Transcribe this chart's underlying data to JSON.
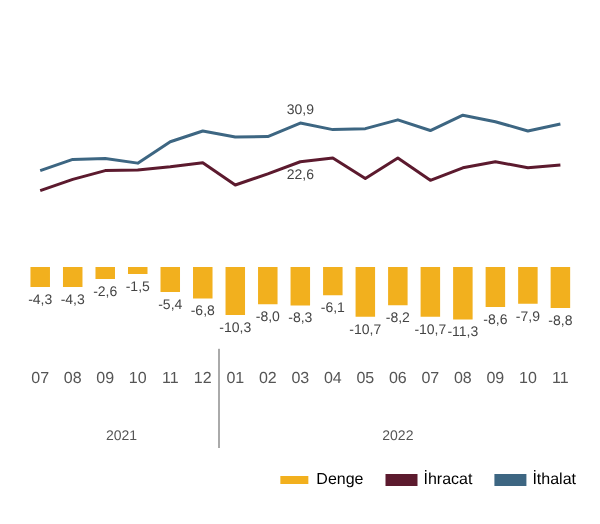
{
  "chart_data": {
    "type": "bar",
    "categories": [
      "07",
      "08",
      "09",
      "10",
      "11",
      "12",
      "01",
      "02",
      "03",
      "04",
      "05",
      "06",
      "07",
      "08",
      "09",
      "10",
      "11"
    ],
    "series": [
      {
        "name": "Denge",
        "color": "#f2b01e",
        "values": [
          -4.3,
          -4.3,
          -2.6,
          -1.5,
          -5.4,
          -6.8,
          -10.3,
          -8.0,
          -8.3,
          -6.1,
          -10.7,
          -8.2,
          -10.7,
          -11.3,
          -8.6,
          -7.9,
          -8.8
        ],
        "value_labels": [
          "-4,3",
          "-4,3",
          "-2,6",
          "-1,5",
          "-5,4",
          "-6,8",
          "-10,3",
          "-8,0",
          "-8,3",
          "-6,1",
          "-10,7",
          "-8,2",
          "-10,7",
          "-11,3",
          "-8,6",
          "-7,9",
          "-8,8"
        ]
      },
      {
        "name": "İhracat",
        "type": "line",
        "color": "#5c1a2e",
        "values": [
          16.4,
          18.8,
          20.7,
          20.8,
          21.5,
          22.4,
          17.6,
          20.0,
          22.6,
          23.4,
          19.0,
          23.4,
          18.6,
          21.3,
          22.6,
          21.3,
          21.9
        ],
        "value_labels": [
          null,
          null,
          null,
          null,
          null,
          null,
          null,
          null,
          "22,6",
          null,
          null,
          null,
          null,
          null,
          null,
          null,
          null
        ]
      },
      {
        "name": "İthalat",
        "type": "line",
        "color": "#3d6682",
        "values": [
          20.7,
          23.1,
          23.3,
          22.3,
          26.9,
          29.2,
          27.9,
          28.0,
          30.9,
          29.5,
          29.7,
          31.6,
          29.3,
          32.6,
          31.2,
          29.2,
          30.7
        ],
        "value_labels": [
          null,
          null,
          null,
          null,
          null,
          null,
          null,
          null,
          "30,9",
          null,
          null,
          null,
          null,
          null,
          null,
          null,
          null
        ]
      }
    ],
    "annotations": [
      "2021",
      "2022"
    ],
    "tick_labels": "x",
    "grid": false,
    "legend": "bottom",
    "marker": "none",
    "line_style": "solid"
  }
}
